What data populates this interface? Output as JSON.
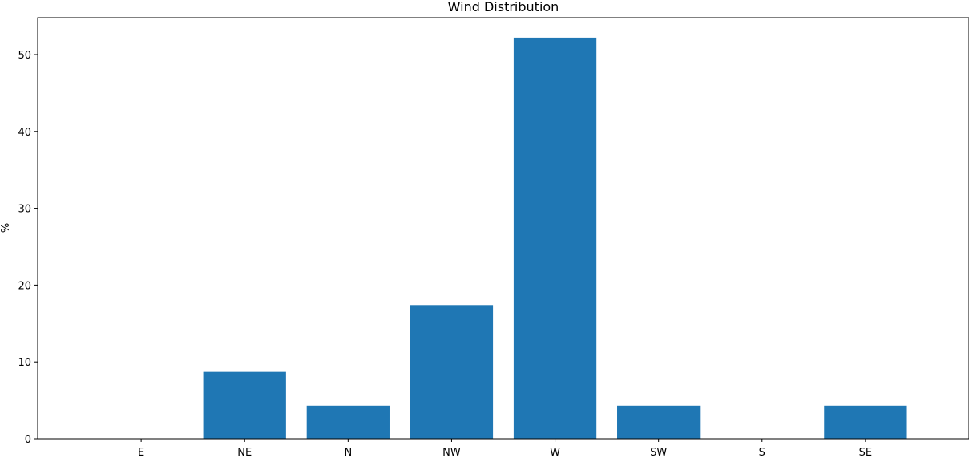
{
  "chart_data": {
    "type": "bar",
    "title": "Wind Distribution",
    "xlabel": "",
    "ylabel": "%",
    "categories": [
      "E",
      "NE",
      "N",
      "NW",
      "W",
      "SW",
      "S",
      "SE"
    ],
    "values": [
      0,
      8.7,
      4.3,
      17.4,
      52.2,
      4.3,
      0,
      4.3
    ],
    "ylim": [
      0,
      54.8
    ],
    "yticks": [
      0,
      10,
      20,
      30,
      40,
      50
    ],
    "grid": false,
    "legend": "none",
    "bar_color": "#1f77b4"
  }
}
